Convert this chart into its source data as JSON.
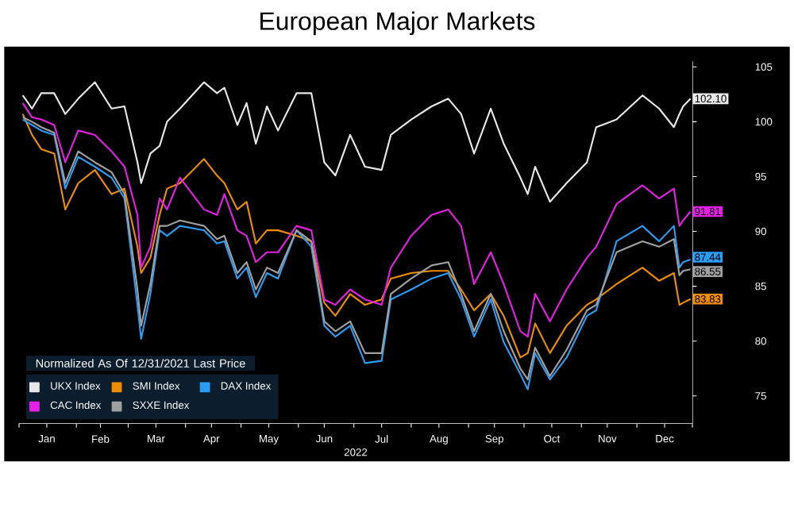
{
  "chart_data": {
    "type": "line",
    "title": "European Major Markets",
    "xlabel": "2022",
    "legend_title": "Normalized As Of 12/31/2021 Last Price",
    "legend": "bottom left",
    "grid": false,
    "marker": "none",
    "line_style": "solid",
    "xlim": [
      "2022-01-01",
      "2022-12-31"
    ],
    "xticks": [
      {
        "value": "2022-01-01",
        "label": null
      },
      {
        "value": "2022-01-16",
        "label": "Jan"
      },
      {
        "value": "2022-02-01",
        "label": null
      },
      {
        "value": "2022-02-14",
        "label": "Feb"
      },
      {
        "value": "2022-03-01",
        "label": null
      },
      {
        "value": "2022-03-16",
        "label": "Mar"
      },
      {
        "value": "2022-04-01",
        "label": null
      },
      {
        "value": "2022-04-15",
        "label": "Apr"
      },
      {
        "value": "2022-05-01",
        "label": null
      },
      {
        "value": "2022-05-16",
        "label": "May"
      },
      {
        "value": "2022-06-01",
        "label": null
      },
      {
        "value": "2022-06-15",
        "label": "Jun"
      },
      {
        "value": "2022-07-01",
        "label": null
      },
      {
        "value": "2022-07-16",
        "label": "Jul"
      },
      {
        "value": "2022-08-01",
        "label": null
      },
      {
        "value": "2022-08-16",
        "label": "Aug"
      },
      {
        "value": "2022-09-01",
        "label": null
      },
      {
        "value": "2022-09-15",
        "label": "Sep"
      },
      {
        "value": "2022-10-01",
        "label": null
      },
      {
        "value": "2022-10-16",
        "label": "Oct"
      },
      {
        "value": "2022-11-01",
        "label": null
      },
      {
        "value": "2022-11-15",
        "label": "Nov"
      },
      {
        "value": "2022-12-01",
        "label": null
      },
      {
        "value": "2022-12-16",
        "label": "Dec"
      },
      {
        "value": "2022-12-31",
        "label": null
      }
    ],
    "ylim": [
      72.5,
      105.5
    ],
    "yticks": [
      75,
      80,
      85,
      90,
      95,
      100,
      105
    ],
    "x": [
      "2022-01-03",
      "2022-01-08",
      "2022-01-13",
      "2022-01-20",
      "2022-01-26",
      "2022-02-02",
      "2022-02-11",
      "2022-02-20",
      "2022-02-27",
      "2022-03-06",
      "2022-03-08",
      "2022-03-13",
      "2022-03-18",
      "2022-03-22",
      "2022-03-29",
      "2022-04-11",
      "2022-04-18",
      "2022-04-22",
      "2022-04-29",
      "2022-05-04",
      "2022-05-09",
      "2022-05-15",
      "2022-05-21",
      "2022-05-31",
      "2022-06-08",
      "2022-06-15",
      "2022-06-21",
      "2022-06-29",
      "2022-07-07",
      "2022-07-16",
      "2022-07-21",
      "2022-08-01",
      "2022-08-12",
      "2022-08-21",
      "2022-08-28",
      "2022-09-04",
      "2022-09-13",
      "2022-09-20",
      "2022-09-29",
      "2022-10-03",
      "2022-10-07",
      "2022-10-15",
      "2022-10-24",
      "2022-11-04",
      "2022-11-09",
      "2022-11-20",
      "2022-12-04",
      "2022-12-13",
      "2022-12-21",
      "2022-12-24",
      "2022-12-26",
      "2022-12-30"
    ],
    "series": [
      {
        "name": "UKX Index",
        "color": "#e8e8e8",
        "values": [
          102.4,
          101.2,
          102.6,
          102.6,
          100.7,
          102.1,
          103.6,
          101.2,
          101.4,
          96.3,
          94.4,
          97.1,
          97.8,
          100,
          101.2,
          103.6,
          102.6,
          103.1,
          99.7,
          101.7,
          98,
          101.4,
          99.2,
          102.6,
          102.6,
          96.3,
          95.1,
          98.8,
          95.9,
          95.6,
          98.8,
          100.2,
          101.4,
          102.1,
          100.7,
          97.1,
          101.2,
          98,
          94.9,
          93.4,
          95.9,
          92.7,
          94.4,
          96.3,
          99.5,
          100.2,
          102.4,
          101.2,
          99.5,
          100.7,
          101.4,
          102.1
        ],
        "value_labels": [
          null,
          null,
          null,
          null,
          null,
          null,
          null,
          null,
          null,
          null,
          null,
          null,
          null,
          null,
          null,
          null,
          null,
          null,
          null,
          null,
          null,
          null,
          null,
          null,
          null,
          null,
          null,
          null,
          null,
          null,
          null,
          null,
          null,
          null,
          null,
          null,
          null,
          null,
          null,
          null,
          null,
          null,
          null,
          null,
          null,
          null,
          null,
          null,
          null,
          null,
          null,
          "102.10"
        ]
      },
      {
        "name": "SMI Index",
        "color": "#f08c00",
        "values": [
          100.7,
          98.8,
          97.5,
          97.1,
          92,
          94.4,
          95.6,
          93.4,
          93.9,
          88.6,
          86.2,
          87.6,
          91.5,
          93.9,
          94.4,
          96.6,
          95.1,
          94.4,
          92,
          92.7,
          88.9,
          90.1,
          90.1,
          89.6,
          89.1,
          83.5,
          82.3,
          84.3,
          83.3,
          83.8,
          85.7,
          86.2,
          86.4,
          86.4,
          84.7,
          82.8,
          84.3,
          82.3,
          78.5,
          78.9,
          81.6,
          78.9,
          81.4,
          83.3,
          83.8,
          85.2,
          86.7,
          85.5,
          86.2,
          83.3,
          83.5,
          83.83
        ],
        "value_labels": [
          null,
          null,
          null,
          null,
          null,
          null,
          null,
          null,
          null,
          null,
          null,
          null,
          null,
          null,
          null,
          null,
          null,
          null,
          null,
          null,
          null,
          null,
          null,
          null,
          null,
          null,
          null,
          null,
          null,
          null,
          null,
          null,
          null,
          null,
          null,
          null,
          null,
          null,
          null,
          null,
          null,
          null,
          null,
          null,
          null,
          null,
          null,
          null,
          null,
          null,
          null,
          "83.83"
        ]
      },
      {
        "name": "DAX Index",
        "color": "#2a9df4",
        "values": [
          100.2,
          99.7,
          99.2,
          98.8,
          93.9,
          96.8,
          95.9,
          94.9,
          93,
          83.3,
          80.2,
          84.3,
          90.1,
          89.6,
          90.5,
          90.1,
          88.9,
          89.1,
          85.7,
          86.7,
          84,
          86.2,
          85.7,
          90.1,
          88.6,
          81.4,
          80.4,
          81.4,
          78,
          78.2,
          83.8,
          84.7,
          85.7,
          86.2,
          83.8,
          80.4,
          83.8,
          79.9,
          77,
          75.6,
          78.9,
          76.5,
          78.5,
          82.3,
          82.8,
          89.1,
          90.5,
          89.1,
          90.5,
          86.7,
          87.2,
          87.44
        ],
        "value_labels": [
          null,
          null,
          null,
          null,
          null,
          null,
          null,
          null,
          null,
          null,
          null,
          null,
          null,
          null,
          null,
          null,
          null,
          null,
          null,
          null,
          null,
          null,
          null,
          null,
          null,
          null,
          null,
          null,
          null,
          null,
          null,
          null,
          null,
          null,
          null,
          null,
          null,
          null,
          null,
          null,
          null,
          null,
          null,
          null,
          null,
          null,
          null,
          null,
          null,
          null,
          null,
          "87.44"
        ]
      },
      {
        "name": "CAC Index",
        "color": "#e61ee6",
        "values": [
          101.7,
          100.4,
          100.2,
          99.7,
          96.3,
          99.2,
          98.8,
          97.3,
          95.9,
          91.5,
          86.7,
          88.6,
          93,
          92,
          94.9,
          92,
          91.5,
          93.4,
          90.1,
          89.6,
          87.2,
          88.1,
          88.1,
          90.5,
          90.1,
          83.8,
          83.3,
          84.7,
          83.8,
          83.3,
          86.7,
          89.6,
          91.5,
          92,
          90.5,
          85.2,
          88.1,
          85.2,
          80.9,
          80.4,
          84.3,
          81.8,
          84.7,
          87.6,
          88.6,
          92.5,
          94.2,
          93,
          93.9,
          90.5,
          91,
          91.81
        ],
        "value_labels": [
          null,
          null,
          null,
          null,
          null,
          null,
          null,
          null,
          null,
          null,
          null,
          null,
          null,
          null,
          null,
          null,
          null,
          null,
          null,
          null,
          null,
          null,
          null,
          null,
          null,
          null,
          null,
          null,
          null,
          null,
          null,
          null,
          null,
          null,
          null,
          null,
          null,
          null,
          null,
          null,
          null,
          null,
          null,
          null,
          null,
          null,
          null,
          null,
          null,
          null,
          null,
          "91.81"
        ]
      },
      {
        "name": "SXXE Index",
        "color": "#a0a0a0",
        "values": [
          100.4,
          100,
          99.5,
          99,
          94.4,
          97.3,
          96.3,
          95.4,
          93.4,
          84.7,
          81.4,
          85.2,
          90.5,
          90.5,
          91,
          90.5,
          89.3,
          89.6,
          86.2,
          87.2,
          84.7,
          86.7,
          86.2,
          90.1,
          89.1,
          81.8,
          80.9,
          81.8,
          78.9,
          78.9,
          84.3,
          85.7,
          86.9,
          87.2,
          84.3,
          80.9,
          84.3,
          80.9,
          77.5,
          76.5,
          79.4,
          76.8,
          79.2,
          82.8,
          83.3,
          88.1,
          89.1,
          88.6,
          89.3,
          86,
          86.4,
          86.55
        ],
        "value_labels": [
          null,
          null,
          null,
          null,
          null,
          null,
          null,
          null,
          null,
          null,
          null,
          null,
          null,
          null,
          null,
          null,
          null,
          null,
          null,
          null,
          null,
          null,
          null,
          null,
          null,
          null,
          null,
          null,
          null,
          null,
          null,
          null,
          null,
          null,
          null,
          null,
          null,
          null,
          null,
          null,
          null,
          null,
          null,
          null,
          null,
          null,
          null,
          null,
          null,
          null,
          null,
          "86.55"
        ]
      }
    ]
  }
}
